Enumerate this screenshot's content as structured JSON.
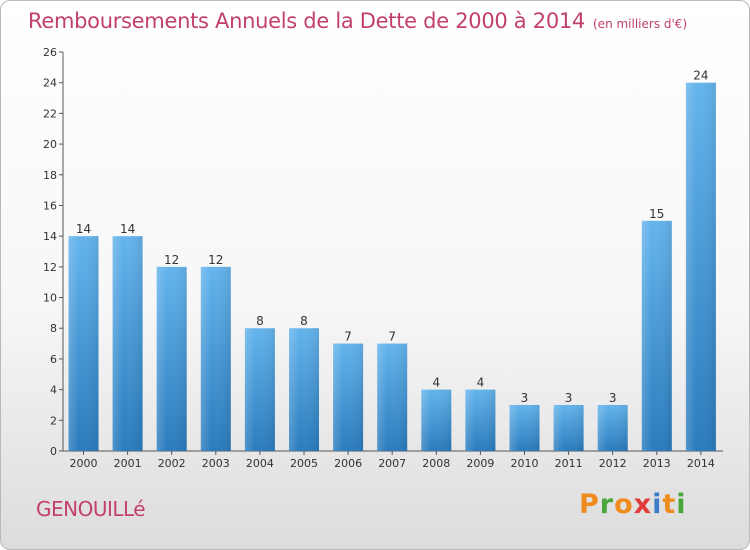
{
  "chart_data": {
    "type": "bar",
    "title": "Remboursements Annuels de la Dette de 2000 à 2014",
    "subtitle": "(en milliers d'€)",
    "categories": [
      "2000",
      "2001",
      "2002",
      "2003",
      "2004",
      "2005",
      "2006",
      "2007",
      "2008",
      "2009",
      "2010",
      "2011",
      "2012",
      "2013",
      "2014"
    ],
    "values": [
      14,
      14,
      12,
      12,
      8,
      8,
      7,
      7,
      4,
      4,
      3,
      3,
      3,
      15,
      24
    ],
    "ylim": [
      0,
      26
    ],
    "yticks": [
      0,
      2,
      4,
      6,
      8,
      10,
      12,
      14,
      16,
      18,
      20,
      22,
      24,
      26
    ],
    "grid": false,
    "data_labels": true,
    "colors": {
      "bar_light": "#62b1ea",
      "bar_dark": "#2c7fc0",
      "text": "#333333",
      "axis": "#555555"
    }
  },
  "footer": {
    "commune": "GENOUILLé",
    "logo_text": "Proxiti"
  },
  "logo_colors": [
    "#f08c1e",
    "#4aa63a",
    "#f08c1e",
    "#e23a3a",
    "#3d7cc9",
    "#f08c1e",
    "#4aa63a"
  ]
}
